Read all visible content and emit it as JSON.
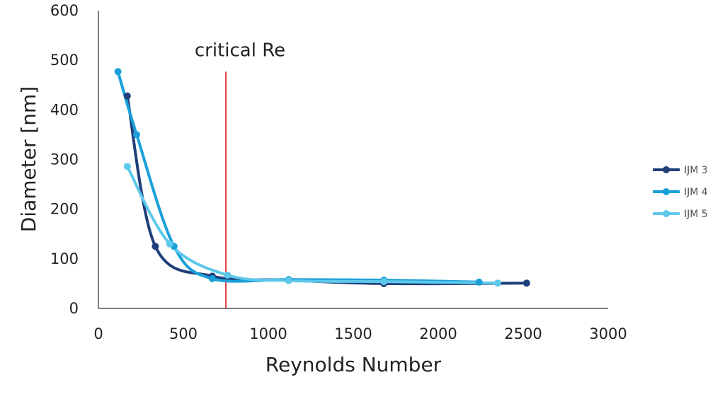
{
  "chart_data": {
    "type": "scatter",
    "xlabel": "Reynolds Number",
    "ylabel": "Diameter [nm]",
    "xlim": [
      0,
      3000
    ],
    "ylim": [
      0,
      600
    ],
    "xticks": [
      0,
      500,
      1000,
      1500,
      2000,
      2500,
      3000
    ],
    "yticks": [
      0,
      100,
      200,
      300,
      400,
      500,
      600
    ],
    "grid": false,
    "legend_position": "right",
    "lines": "smoothed",
    "series": [
      {
        "name": "IJM 3",
        "color": "#1f3f7a",
        "points": [
          [
            170,
            428
          ],
          [
            335,
            125
          ],
          [
            670,
            65
          ],
          [
            1120,
            57
          ],
          [
            1680,
            50
          ],
          [
            2520,
            51
          ]
        ]
      },
      {
        "name": "IJM 4",
        "color": "#1aa0d8",
        "points": [
          [
            115,
            477
          ],
          [
            225,
            350
          ],
          [
            445,
            125
          ],
          [
            670,
            60
          ],
          [
            1120,
            58
          ],
          [
            1680,
            57
          ],
          [
            2240,
            53
          ]
        ]
      },
      {
        "name": "IJM 5",
        "color": "#5dc8ea",
        "points": [
          [
            170,
            286
          ],
          [
            420,
            130
          ],
          [
            760,
            67
          ],
          [
            1120,
            56
          ],
          [
            1680,
            54
          ],
          [
            2350,
            51
          ]
        ]
      }
    ],
    "annotations": [
      {
        "type": "vline",
        "x": 750,
        "y_top": 477,
        "color": "#e03030",
        "label": "critical Re"
      }
    ]
  }
}
